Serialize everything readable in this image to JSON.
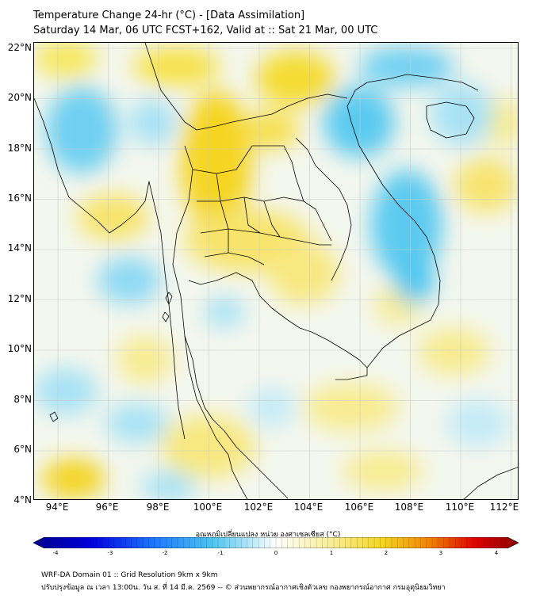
{
  "header": {
    "title_line1": "Temperature Change 24-hr (°C) - [Data Assimilation]",
    "title_line2": "Saturday 14 Mar, 06 UTC FCST+162, Valid at :: Sat 21 Mar, 00 UTC"
  },
  "map": {
    "lat_labels": [
      "22°N",
      "20°N",
      "18°N",
      "16°N",
      "14°N",
      "12°N",
      "10°N",
      "8°N",
      "6°N",
      "4°N"
    ],
    "lon_labels": [
      "94°E",
      "96°E",
      "98°E",
      "100°E",
      "102°E",
      "104°E",
      "106°E",
      "108°E",
      "110°E",
      "112°E"
    ],
    "warm_color": "#f5d800",
    "cool_color": "#4cc6f0",
    "grid_color": "#c8c8c8",
    "border_color": "#000000"
  },
  "colorbar": {
    "title": "อุณหภูมิเปลี่ยนแปลง หน่วย องศาเซลเซียส (°C)",
    "ticks": [
      "-4",
      "-3",
      "-2",
      "-1",
      "0",
      "1",
      "2",
      "3",
      "4"
    ],
    "range": [
      -4,
      4
    ],
    "low_color": "#00008b",
    "mid_color": "#ffffff",
    "high_color": "#8b0000"
  },
  "footer": {
    "line1": "WRF-DA Domain 01 :: Grid Resolution 9km x 9km",
    "line2": "ปรับปรุงข้อมูล ณ เวลา 13:00น. วัน ส. ที่ 14 มี.ค. 2569 -- © ส่วนพยากรณ์อากาศเชิงตัวเลข กองพยากรณ์อากาศ กรมอุตุนิยมวิทยา"
  }
}
